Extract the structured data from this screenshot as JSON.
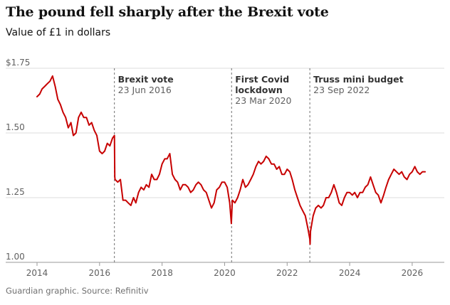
{
  "header": {
    "title": "The pound fell sharply after the Brexit vote",
    "subtitle": "Value of £1 in dollars"
  },
  "footer": {
    "source": "Guardian graphic. Source: Refinitiv"
  },
  "chart_data": {
    "type": "line",
    "title": "The pound fell sharply after the Brexit vote",
    "subtitle": "Value of £1 in dollars",
    "xlabel": "",
    "ylabel": "",
    "ylim": [
      1.0,
      1.75
    ],
    "xlim": [
      "2014-01-01",
      "2026-08-31"
    ],
    "y_ticks": [
      {
        "value": 1.0,
        "label": "1.00"
      },
      {
        "value": 1.25,
        "label": "1.25"
      },
      {
        "value": 1.5,
        "label": "1.50"
      },
      {
        "value": 1.75,
        "label": "$1.75"
      }
    ],
    "x_ticks": [
      "2014",
      "2016",
      "2018",
      "2020",
      "2022",
      "2024",
      "2026"
    ],
    "grid": "horizontal",
    "line_color": "#c70000",
    "series": [
      {
        "points": [
          [
            "2014-01-01",
            1.64
          ],
          [
            "2014-02-01",
            1.65
          ],
          [
            "2014-03-01",
            1.67
          ],
          [
            "2014-04-01",
            1.68
          ],
          [
            "2014-05-01",
            1.69
          ],
          [
            "2014-06-01",
            1.7
          ],
          [
            "2014-07-01",
            1.72
          ],
          [
            "2014-08-01",
            1.68
          ],
          [
            "2014-09-01",
            1.63
          ],
          [
            "2014-10-01",
            1.61
          ],
          [
            "2014-11-01",
            1.58
          ],
          [
            "2014-12-01",
            1.56
          ],
          [
            "2015-01-01",
            1.52
          ],
          [
            "2015-02-01",
            1.54
          ],
          [
            "2015-03-01",
            1.49
          ],
          [
            "2015-04-01",
            1.5
          ],
          [
            "2015-05-01",
            1.56
          ],
          [
            "2015-06-01",
            1.58
          ],
          [
            "2015-07-01",
            1.56
          ],
          [
            "2015-08-01",
            1.56
          ],
          [
            "2015-09-01",
            1.53
          ],
          [
            "2015-10-01",
            1.54
          ],
          [
            "2015-11-01",
            1.51
          ],
          [
            "2015-12-01",
            1.49
          ],
          [
            "2016-01-01",
            1.43
          ],
          [
            "2016-02-01",
            1.42
          ],
          [
            "2016-03-01",
            1.43
          ],
          [
            "2016-04-01",
            1.46
          ],
          [
            "2016-05-01",
            1.45
          ],
          [
            "2016-06-01",
            1.48
          ],
          [
            "2016-06-23",
            1.49
          ],
          [
            "2016-06-27",
            1.33
          ],
          [
            "2016-07-01",
            1.32
          ],
          [
            "2016-08-01",
            1.31
          ],
          [
            "2016-09-01",
            1.32
          ],
          [
            "2016-10-01",
            1.24
          ],
          [
            "2016-11-01",
            1.24
          ],
          [
            "2016-12-01",
            1.23
          ],
          [
            "2017-01-01",
            1.22
          ],
          [
            "2017-02-01",
            1.25
          ],
          [
            "2017-03-01",
            1.23
          ],
          [
            "2017-04-01",
            1.27
          ],
          [
            "2017-05-01",
            1.29
          ],
          [
            "2017-06-01",
            1.28
          ],
          [
            "2017-07-01",
            1.3
          ],
          [
            "2017-08-01",
            1.29
          ],
          [
            "2017-09-01",
            1.34
          ],
          [
            "2017-10-01",
            1.32
          ],
          [
            "2017-11-01",
            1.32
          ],
          [
            "2017-12-01",
            1.34
          ],
          [
            "2018-01-01",
            1.38
          ],
          [
            "2018-02-01",
            1.4
          ],
          [
            "2018-03-01",
            1.4
          ],
          [
            "2018-04-01",
            1.42
          ],
          [
            "2018-05-01",
            1.34
          ],
          [
            "2018-06-01",
            1.32
          ],
          [
            "2018-07-01",
            1.31
          ],
          [
            "2018-08-01",
            1.28
          ],
          [
            "2018-09-01",
            1.3
          ],
          [
            "2018-10-01",
            1.3
          ],
          [
            "2018-11-01",
            1.29
          ],
          [
            "2018-12-01",
            1.27
          ],
          [
            "2019-01-01",
            1.28
          ],
          [
            "2019-02-01",
            1.3
          ],
          [
            "2019-03-01",
            1.31
          ],
          [
            "2019-04-01",
            1.3
          ],
          [
            "2019-05-01",
            1.28
          ],
          [
            "2019-06-01",
            1.27
          ],
          [
            "2019-07-01",
            1.24
          ],
          [
            "2019-08-01",
            1.21
          ],
          [
            "2019-09-01",
            1.23
          ],
          [
            "2019-10-01",
            1.28
          ],
          [
            "2019-11-01",
            1.29
          ],
          [
            "2019-12-01",
            1.31
          ],
          [
            "2020-01-01",
            1.31
          ],
          [
            "2020-02-01",
            1.29
          ],
          [
            "2020-03-01",
            1.23
          ],
          [
            "2020-03-20",
            1.15
          ],
          [
            "2020-04-01",
            1.24
          ],
          [
            "2020-05-01",
            1.23
          ],
          [
            "2020-06-01",
            1.25
          ],
          [
            "2020-07-01",
            1.28
          ],
          [
            "2020-08-01",
            1.32
          ],
          [
            "2020-09-01",
            1.29
          ],
          [
            "2020-10-01",
            1.3
          ],
          [
            "2020-11-01",
            1.32
          ],
          [
            "2020-12-01",
            1.34
          ],
          [
            "2021-01-01",
            1.37
          ],
          [
            "2021-02-01",
            1.39
          ],
          [
            "2021-03-01",
            1.38
          ],
          [
            "2021-04-01",
            1.39
          ],
          [
            "2021-05-01",
            1.41
          ],
          [
            "2021-06-01",
            1.4
          ],
          [
            "2021-07-01",
            1.38
          ],
          [
            "2021-08-01",
            1.38
          ],
          [
            "2021-09-01",
            1.36
          ],
          [
            "2021-10-01",
            1.37
          ],
          [
            "2021-11-01",
            1.34
          ],
          [
            "2021-12-01",
            1.34
          ],
          [
            "2022-01-01",
            1.36
          ],
          [
            "2022-02-01",
            1.35
          ],
          [
            "2022-03-01",
            1.32
          ],
          [
            "2022-04-01",
            1.28
          ],
          [
            "2022-05-01",
            1.25
          ],
          [
            "2022-06-01",
            1.22
          ],
          [
            "2022-07-01",
            1.2
          ],
          [
            "2022-08-01",
            1.18
          ],
          [
            "2022-09-01",
            1.13
          ],
          [
            "2022-09-23",
            1.09
          ],
          [
            "2022-09-26",
            1.07
          ],
          [
            "2022-10-01",
            1.12
          ],
          [
            "2022-11-01",
            1.18
          ],
          [
            "2022-12-01",
            1.21
          ],
          [
            "2023-01-01",
            1.22
          ],
          [
            "2023-02-01",
            1.21
          ],
          [
            "2023-03-01",
            1.22
          ],
          [
            "2023-04-01",
            1.25
          ],
          [
            "2023-05-01",
            1.25
          ],
          [
            "2023-06-01",
            1.27
          ],
          [
            "2023-07-01",
            1.3
          ],
          [
            "2023-08-01",
            1.27
          ],
          [
            "2023-09-01",
            1.23
          ],
          [
            "2023-10-01",
            1.22
          ],
          [
            "2023-11-01",
            1.25
          ],
          [
            "2023-12-01",
            1.27
          ],
          [
            "2024-01-01",
            1.27
          ],
          [
            "2024-02-01",
            1.26
          ],
          [
            "2024-03-01",
            1.27
          ],
          [
            "2024-04-01",
            1.25
          ],
          [
            "2024-05-01",
            1.27
          ],
          [
            "2024-06-01",
            1.27
          ],
          [
            "2024-07-01",
            1.29
          ],
          [
            "2024-08-01",
            1.3
          ],
          [
            "2024-09-01",
            1.33
          ],
          [
            "2024-10-01",
            1.3
          ],
          [
            "2024-11-01",
            1.27
          ],
          [
            "2024-12-01",
            1.26
          ],
          [
            "2025-01-01",
            1.23
          ],
          [
            "2025-02-01",
            1.26
          ],
          [
            "2025-03-01",
            1.29
          ],
          [
            "2025-04-01",
            1.32
          ],
          [
            "2025-05-01",
            1.34
          ],
          [
            "2025-06-01",
            1.36
          ],
          [
            "2025-07-01",
            1.35
          ],
          [
            "2025-08-01",
            1.34
          ],
          [
            "2025-09-01",
            1.35
          ],
          [
            "2025-10-01",
            1.33
          ],
          [
            "2025-11-01",
            1.32
          ],
          [
            "2025-12-01",
            1.34
          ],
          [
            "2026-01-01",
            1.35
          ],
          [
            "2026-02-01",
            1.37
          ],
          [
            "2026-03-01",
            1.35
          ],
          [
            "2026-04-01",
            1.34
          ],
          [
            "2026-05-01",
            1.35
          ],
          [
            "2026-06-01",
            1.35
          ]
        ]
      }
    ],
    "annotations": [
      {
        "date": "2016-06-23",
        "title": [
          "Brexit vote"
        ],
        "label": "23 Jun 2016"
      },
      {
        "date": "2020-03-23",
        "title": [
          "First Covid",
          "lockdown"
        ],
        "label": "23 Mar 2020"
      },
      {
        "date": "2022-09-23",
        "title": [
          "Truss mini budget"
        ],
        "label": "23 Sep 2022"
      }
    ]
  }
}
